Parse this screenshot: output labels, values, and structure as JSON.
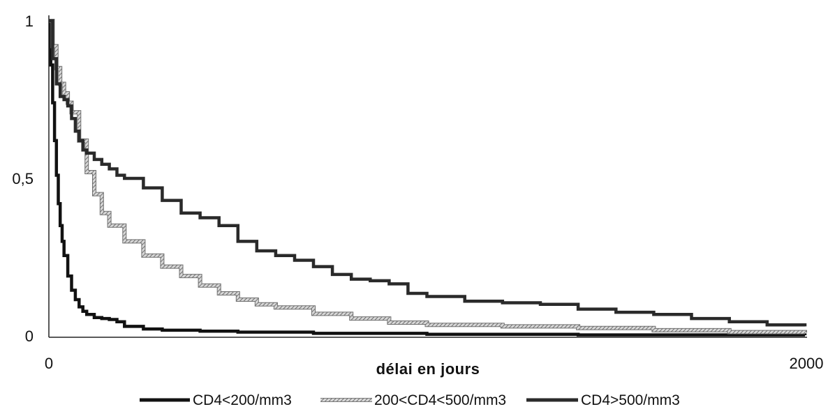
{
  "chart_data": {
    "type": "line",
    "title": "",
    "xlabel": "délai en jours",
    "ylabel": "",
    "xlim": [
      0,
      2000
    ],
    "ylim": [
      0,
      1
    ],
    "x_ticks": [
      {
        "value": 0,
        "label": "0"
      },
      {
        "value": 2000,
        "label": "2000"
      }
    ],
    "y_ticks": [
      {
        "value": 0,
        "label": "0"
      },
      {
        "value": 0.5,
        "label": "0,5"
      },
      {
        "value": 1,
        "label": "1"
      }
    ],
    "grid": false,
    "legend_position": "bottom",
    "series": [
      {
        "name": "CD4<200/mm3",
        "color": "#111111",
        "style": "solid-thick",
        "x": [
          0,
          5,
          10,
          15,
          20,
          25,
          30,
          35,
          40,
          50,
          60,
          70,
          80,
          90,
          100,
          120,
          140,
          160,
          180,
          200,
          250,
          300,
          400,
          500,
          700,
          1000,
          1400,
          2000
        ],
        "y": [
          1.0,
          0.86,
          0.74,
          0.62,
          0.51,
          0.42,
          0.35,
          0.3,
          0.255,
          0.19,
          0.145,
          0.115,
          0.092,
          0.078,
          0.068,
          0.058,
          0.055,
          0.052,
          0.045,
          0.03,
          0.022,
          0.018,
          0.015,
          0.012,
          0.008,
          0.005,
          0.003,
          0.002
        ]
      },
      {
        "name": "200<CD4<500/mm3",
        "color": "#9a9a9a",
        "style": "hatched",
        "x": [
          0,
          10,
          20,
          30,
          40,
          50,
          60,
          80,
          100,
          120,
          140,
          160,
          200,
          250,
          300,
          350,
          400,
          450,
          500,
          550,
          600,
          700,
          800,
          900,
          1000,
          1200,
          1400,
          1600,
          1800,
          2000
        ],
        "y": [
          1.0,
          0.92,
          0.85,
          0.8,
          0.77,
          0.74,
          0.71,
          0.62,
          0.52,
          0.45,
          0.39,
          0.35,
          0.3,
          0.255,
          0.22,
          0.19,
          0.16,
          0.135,
          0.115,
          0.1,
          0.09,
          0.07,
          0.055,
          0.042,
          0.035,
          0.03,
          0.025,
          0.018,
          0.012,
          0.01
        ]
      },
      {
        "name": "CD4>500/mm3",
        "color": "#2a2a2a",
        "style": "solid-thick",
        "x": [
          0,
          10,
          20,
          30,
          40,
          50,
          60,
          70,
          80,
          90,
          100,
          120,
          140,
          160,
          180,
          200,
          250,
          300,
          350,
          400,
          450,
          500,
          550,
          600,
          650,
          700,
          750,
          800,
          850,
          900,
          950,
          1000,
          1100,
          1200,
          1300,
          1400,
          1500,
          1600,
          1700,
          1800,
          1900,
          2000
        ],
        "y": [
          1.0,
          0.88,
          0.8,
          0.76,
          0.75,
          0.73,
          0.69,
          0.65,
          0.62,
          0.59,
          0.58,
          0.56,
          0.545,
          0.53,
          0.51,
          0.5,
          0.47,
          0.43,
          0.39,
          0.375,
          0.35,
          0.3,
          0.27,
          0.255,
          0.24,
          0.22,
          0.195,
          0.18,
          0.175,
          0.165,
          0.135,
          0.125,
          0.11,
          0.105,
          0.1,
          0.085,
          0.075,
          0.068,
          0.055,
          0.045,
          0.035,
          0.03
        ]
      }
    ]
  }
}
